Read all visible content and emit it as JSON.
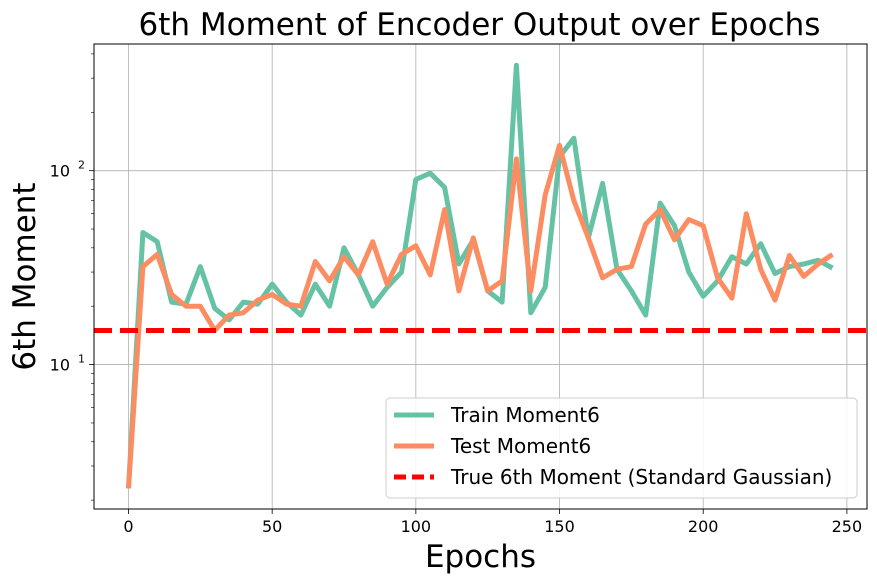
{
  "chart_data": {
    "type": "line",
    "title": "6th Moment of Encoder Output over Epochs",
    "xlabel": "Epochs",
    "ylabel": "6th Moment",
    "yscale": "log",
    "xlim": [
      -12,
      257
    ],
    "ylim": [
      1.8,
      450
    ],
    "xticks": [
      0,
      50,
      100,
      150,
      200,
      250
    ],
    "yticks": [
      {
        "value": 10,
        "label": "10",
        "sup": "1"
      },
      {
        "value": 100,
        "label": "10",
        "sup": "2"
      }
    ],
    "grid": true,
    "legend_position": "lower right",
    "x": [
      0,
      5,
      10,
      15,
      20,
      25,
      30,
      35,
      40,
      45,
      50,
      55,
      60,
      65,
      70,
      75,
      80,
      85,
      90,
      95,
      100,
      105,
      110,
      115,
      120,
      125,
      130,
      135,
      140,
      145,
      150,
      155,
      160,
      165,
      170,
      175,
      180,
      185,
      190,
      195,
      200,
      205,
      210,
      215,
      220,
      225,
      230,
      235,
      240,
      245
    ],
    "series": [
      {
        "name": "Train Moment6",
        "color": "#66c2a5",
        "style": "solid",
        "values": [
          2.3,
          48,
          43,
          21,
          20.5,
          32,
          19.5,
          17,
          21,
          20.5,
          26,
          21,
          18,
          26,
          20,
          40,
          29,
          20,
          25,
          30,
          90,
          97,
          82,
          33,
          44,
          24,
          21,
          350,
          18.5,
          25,
          118,
          147,
          45,
          86,
          31,
          24,
          18,
          68,
          52,
          30,
          22.5,
          27,
          36,
          33,
          42,
          29.5,
          32,
          33,
          34.5,
          31.5
        ]
      },
      {
        "name": "Test Moment6",
        "color": "#fc8d62",
        "style": "solid",
        "values": [
          2.3,
          32,
          37,
          23,
          20,
          20,
          15,
          18,
          18.5,
          21.5,
          23,
          20.5,
          20,
          34,
          27,
          36,
          29,
          43,
          26,
          37,
          41,
          29,
          63,
          24,
          45,
          24,
          27,
          115,
          24,
          75,
          135,
          70,
          45,
          28,
          31,
          32,
          53,
          63,
          44,
          56,
          52,
          28,
          22,
          60,
          31,
          21.5,
          36.5,
          28.5,
          33,
          37
        ]
      },
      {
        "name": "True 6th Moment (Standard Gaussian)",
        "color": "#ff0000",
        "style": "dashed",
        "constant": 15
      }
    ]
  }
}
